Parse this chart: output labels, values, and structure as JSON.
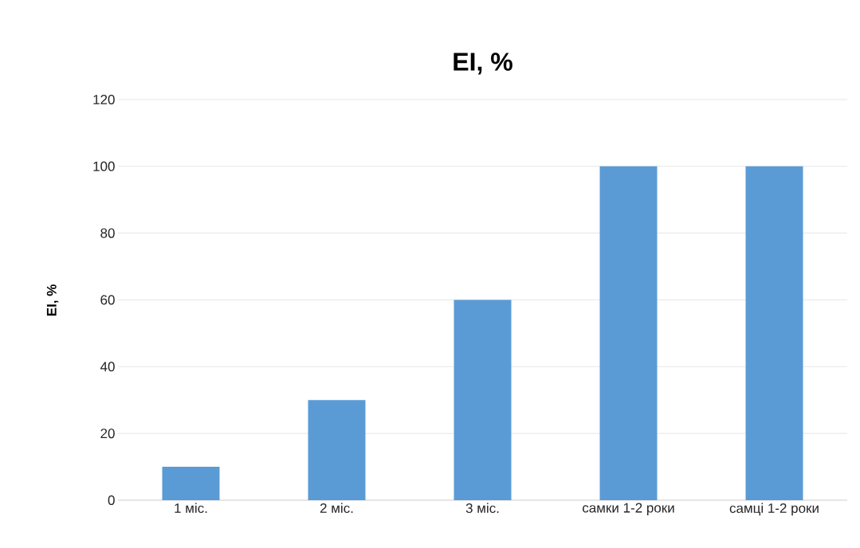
{
  "chart_data": {
    "type": "bar",
    "title": "EI, %",
    "ylabel": "EI, %",
    "categories": [
      "1 міс.",
      "2 міс.",
      "3 міс.",
      "самки 1-2 роки",
      "самці 1-2 роки"
    ],
    "values": [
      10,
      30,
      60,
      100,
      100
    ],
    "color": "#5b9bd5",
    "ylim": [
      0,
      120
    ],
    "yticks": [
      0,
      20,
      40,
      60,
      80,
      100,
      120
    ],
    "grid": "y"
  }
}
